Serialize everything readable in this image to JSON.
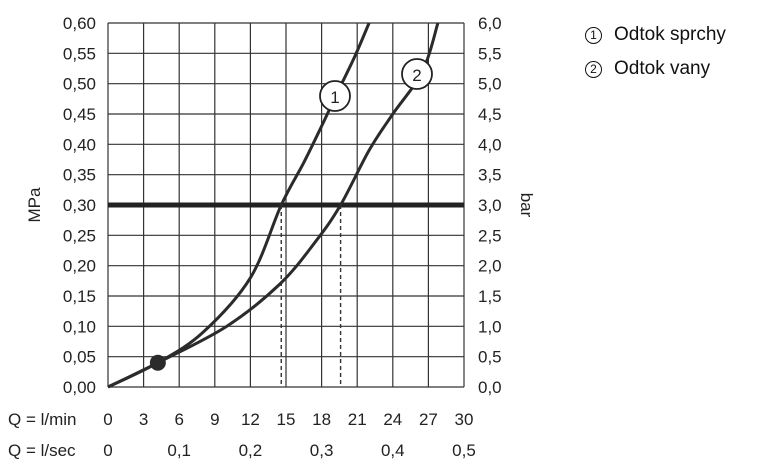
{
  "chart_data": {
    "type": "line",
    "ylabel_left": "MPa",
    "ylabel_right": "bar",
    "ylim": [
      0,
      0.6
    ],
    "y_ticks_left": [
      "0,00",
      "0,05",
      "0,10",
      "0,15",
      "0,20",
      "0,25",
      "0,30",
      "0,35",
      "0,40",
      "0,45",
      "0,50",
      "0,55",
      "0,60"
    ],
    "y_ticks_right": [
      "0,0",
      "0,5",
      "1,0",
      "1,5",
      "2,0",
      "2,5",
      "3,0",
      "3,5",
      "4,0",
      "4,5",
      "5,0",
      "5,5",
      "6,0"
    ],
    "xlim": [
      0,
      30
    ],
    "x_axis_label_lmin": "Q = l/min",
    "x_ticks_lmin": [
      "0",
      "3",
      "6",
      "9",
      "12",
      "15",
      "18",
      "21",
      "24",
      "27",
      "30"
    ],
    "x_axis_label_lsec": "Q = l/sec",
    "x_ticks_lsec": [
      "0",
      "0,1",
      "0,2",
      "0,3",
      "0,4",
      "0,5"
    ],
    "grid": true,
    "reference_line_y": 0.3,
    "marker_point": {
      "x": 4.2,
      "y": 0.04
    },
    "series": [
      {
        "marker": "1",
        "x": [
          0,
          4.2,
          8,
          12,
          14.6,
          16.5,
          18,
          19.2,
          20.8,
          22
        ],
        "y": [
          0,
          0.04,
          0.09,
          0.18,
          0.3,
          0.37,
          0.43,
          0.48,
          0.545,
          0.6
        ]
      },
      {
        "marker": "2",
        "x": [
          0,
          4.2,
          10,
          14.5,
          17.5,
          19.6,
          22,
          24,
          26.5,
          27.8
        ],
        "y": [
          0,
          0.04,
          0.1,
          0.17,
          0.24,
          0.3,
          0.39,
          0.45,
          0.52,
          0.6
        ]
      }
    ],
    "drop_lines": [
      {
        "x": 14.6,
        "y": 0.3
      },
      {
        "x": 19.6,
        "y": 0.3
      }
    ]
  },
  "legend": [
    {
      "marker": "①",
      "label": "Odtok sprchy"
    },
    {
      "marker": "②",
      "label": "Odtok vany"
    }
  ],
  "colors": {
    "grid": "#333333",
    "curve": "#2b2b2b",
    "reference": "#222222"
  }
}
